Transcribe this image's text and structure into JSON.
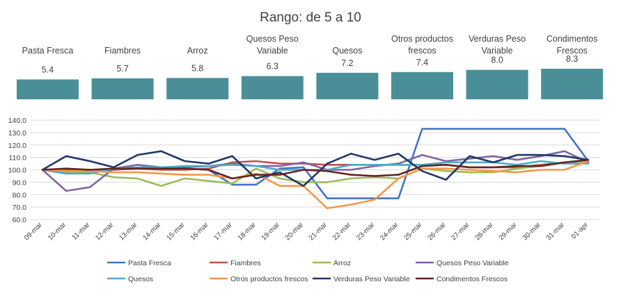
{
  "title": "Rango: de 5 a 10",
  "chart_data": [
    {
      "type": "bar",
      "categories": [
        [
          "Pasta Fresca"
        ],
        [
          "Fiambres"
        ],
        [
          "Arroz"
        ],
        [
          "Quesos Peso",
          "Variable"
        ],
        [
          "Quesos"
        ],
        [
          "Otros productos",
          "frescos"
        ],
        [
          "Verduras Peso",
          "Variable"
        ],
        [
          "Condimentos",
          "Frescos"
        ]
      ],
      "values": [
        5.4,
        5.7,
        5.8,
        6.3,
        7.2,
        7.4,
        8.0,
        8.3
      ],
      "value_labels": [
        "5.4",
        "5.7",
        "5.8",
        "6.3",
        "7.2",
        "7.4",
        "8.0",
        "8.3"
      ],
      "bar_color": "#4a8f98",
      "ylim": [
        0,
        10
      ]
    },
    {
      "type": "line",
      "x": [
        "09-mar",
        "10-mar",
        "11-mar",
        "12-mar",
        "13-mar",
        "14-mar",
        "15-mar",
        "16-mar",
        "17-mar",
        "18-mar",
        "19-mar",
        "20-mar",
        "21-mar",
        "22-mar",
        "23-mar",
        "24-mar",
        "25-mar",
        "26-mar",
        "27-mar",
        "28-mar",
        "29-mar",
        "30-mar",
        "31-mar",
        "01-apr"
      ],
      "ylim": [
        60,
        140
      ],
      "yticks": [
        "60.0",
        "70.0",
        "80.0",
        "90.0",
        "100.0",
        "110.0",
        "120.0",
        "130.0",
        "140.0"
      ],
      "ytick_values": [
        60,
        70,
        80,
        90,
        100,
        110,
        120,
        130,
        140
      ],
      "grid": true,
      "legend_position": "bottom",
      "series": [
        {
          "name": "Pasta Fresca",
          "color": "#4472c4",
          "values": [
            100,
            97,
            98,
            100,
            101,
            101,
            101,
            100,
            88,
            88,
            101,
            102,
            77,
            77,
            77,
            77,
            133,
            133,
            133,
            133,
            133,
            133,
            133,
            107
          ]
        },
        {
          "name": "Fiambres",
          "color": "#c0504d",
          "values": [
            100,
            100,
            100,
            100,
            101,
            100,
            100,
            101,
            106,
            107,
            105,
            105,
            104,
            104,
            104,
            104,
            104,
            104,
            102,
            102,
            102,
            104,
            106,
            106
          ]
        },
        {
          "name": "Arroz",
          "color": "#9bbb59",
          "values": [
            100,
            98,
            98,
            94,
            93,
            87,
            93,
            91,
            89,
            101,
            93,
            90,
            90,
            93,
            94,
            93,
            101,
            99,
            98,
            98,
            101,
            103,
            106,
            106
          ]
        },
        {
          "name": "Quesos Peso Variable",
          "color": "#8064a2",
          "values": [
            100,
            83,
            86,
            101,
            104,
            102,
            102,
            103,
            105,
            103,
            103,
            106,
            100,
            100,
            103,
            105,
            112,
            107,
            109,
            111,
            108,
            111,
            115,
            106
          ]
        },
        {
          "name": "Quesos",
          "color": "#4bacc6",
          "values": [
            100,
            97,
            97,
            101,
            102,
            102,
            103,
            103,
            104,
            103,
            100,
            100,
            100,
            104,
            104,
            104,
            104,
            106,
            106,
            106,
            104,
            107,
            105,
            105
          ]
        },
        {
          "name": "Otros productos frescos",
          "color": "#f79646",
          "values": [
            100,
            99,
            99,
            98,
            98,
            97,
            96,
            96,
            93,
            97,
            87,
            87,
            69,
            72,
            76,
            93,
            101,
            101,
            100,
            99,
            98,
            100,
            100,
            107
          ]
        },
        {
          "name": "Verduras Peso Variable",
          "color": "#1f3864",
          "values": [
            100,
            111,
            107,
            102,
            112,
            115,
            107,
            105,
            111,
            93,
            98,
            87,
            105,
            113,
            108,
            113,
            99,
            92,
            111,
            106,
            112,
            112,
            111,
            108
          ]
        },
        {
          "name": "Condimentos Frescos",
          "color": "#632523",
          "values": [
            100,
            101,
            100,
            101,
            101,
            101,
            101,
            100,
            93,
            96,
            96,
            100,
            99,
            96,
            95,
            96,
            103,
            104,
            102,
            102,
            103,
            103,
            106,
            108
          ]
        }
      ]
    }
  ]
}
